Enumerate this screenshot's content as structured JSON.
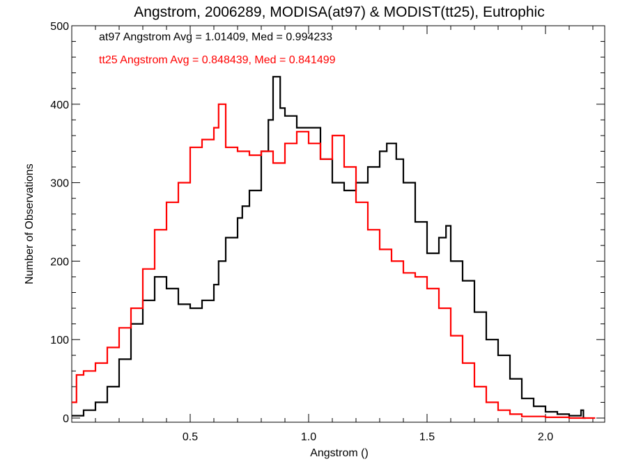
{
  "chart_data": {
    "type": "line",
    "title": "Angstrom, 2006289, MODISA(at97) & MODIST(tt25), Eutrophic",
    "xlabel": "Angstrom ()",
    "ylabel": "Number of Observations",
    "xlim": [
      0.0,
      2.25
    ],
    "ylim": [
      0,
      500
    ],
    "xticks": [
      0.5,
      1.0,
      1.5,
      2.0
    ],
    "xtick_labels": [
      "0.5",
      "1.0",
      "1.5",
      "2.0"
    ],
    "yticks": [
      0,
      100,
      200,
      300,
      400,
      500
    ],
    "ytick_labels": [
      "0",
      "100",
      "200",
      "300",
      "400",
      "500"
    ],
    "grid": false,
    "step": "histogram",
    "annotations": [
      {
        "text": "at97 Angstrom Avg = 1.01409, Med = 0.994233",
        "color": "#000000"
      },
      {
        "text": "tt25 Angstrom Avg = 0.848439, Med = 0.841499",
        "color": "#ff0000"
      }
    ],
    "series": [
      {
        "color": "#000000",
        "points": [
          [
            0.0,
            3
          ],
          [
            0.05,
            10
          ],
          [
            0.1,
            20
          ],
          [
            0.15,
            40
          ],
          [
            0.2,
            75
          ],
          [
            0.25,
            120
          ],
          [
            0.3,
            150
          ],
          [
            0.35,
            180
          ],
          [
            0.4,
            165
          ],
          [
            0.45,
            145
          ],
          [
            0.5,
            140
          ],
          [
            0.55,
            150
          ],
          [
            0.6,
            170
          ],
          [
            0.62,
            200
          ],
          [
            0.65,
            230
          ],
          [
            0.7,
            255
          ],
          [
            0.72,
            270
          ],
          [
            0.75,
            290
          ],
          [
            0.8,
            340
          ],
          [
            0.83,
            380
          ],
          [
            0.85,
            435
          ],
          [
            0.88,
            395
          ],
          [
            0.9,
            385
          ],
          [
            0.95,
            370
          ],
          [
            1.0,
            370
          ],
          [
            1.05,
            330
          ],
          [
            1.1,
            300
          ],
          [
            1.15,
            290
          ],
          [
            1.2,
            300
          ],
          [
            1.25,
            320
          ],
          [
            1.3,
            340
          ],
          [
            1.33,
            350
          ],
          [
            1.37,
            330
          ],
          [
            1.4,
            300
          ],
          [
            1.45,
            250
          ],
          [
            1.5,
            210
          ],
          [
            1.55,
            230
          ],
          [
            1.58,
            245
          ],
          [
            1.6,
            200
          ],
          [
            1.65,
            175
          ],
          [
            1.7,
            135
          ],
          [
            1.75,
            100
          ],
          [
            1.8,
            80
          ],
          [
            1.85,
            50
          ],
          [
            1.9,
            25
          ],
          [
            1.95,
            15
          ],
          [
            2.0,
            8
          ],
          [
            2.05,
            5
          ],
          [
            2.1,
            3
          ],
          [
            2.15,
            10
          ],
          [
            2.16,
            0
          ]
        ]
      },
      {
        "color": "#ff0000",
        "points": [
          [
            0.0,
            20
          ],
          [
            0.02,
            55
          ],
          [
            0.05,
            60
          ],
          [
            0.1,
            70
          ],
          [
            0.15,
            90
          ],
          [
            0.2,
            115
          ],
          [
            0.25,
            140
          ],
          [
            0.3,
            190
          ],
          [
            0.35,
            240
          ],
          [
            0.4,
            275
          ],
          [
            0.45,
            300
          ],
          [
            0.5,
            345
          ],
          [
            0.55,
            355
          ],
          [
            0.6,
            370
          ],
          [
            0.62,
            400
          ],
          [
            0.65,
            345
          ],
          [
            0.7,
            340
          ],
          [
            0.75,
            335
          ],
          [
            0.8,
            340
          ],
          [
            0.85,
            325
          ],
          [
            0.9,
            350
          ],
          [
            0.95,
            365
          ],
          [
            1.0,
            350
          ],
          [
            1.05,
            330
          ],
          [
            1.1,
            360
          ],
          [
            1.15,
            320
          ],
          [
            1.2,
            275
          ],
          [
            1.25,
            240
          ],
          [
            1.3,
            215
          ],
          [
            1.35,
            200
          ],
          [
            1.4,
            185
          ],
          [
            1.45,
            180
          ],
          [
            1.5,
            165
          ],
          [
            1.55,
            140
          ],
          [
            1.6,
            105
          ],
          [
            1.65,
            70
          ],
          [
            1.7,
            40
          ],
          [
            1.75,
            20
          ],
          [
            1.8,
            10
          ],
          [
            1.85,
            5
          ],
          [
            1.9,
            2
          ],
          [
            2.0,
            1
          ],
          [
            2.1,
            0
          ],
          [
            2.2,
            0
          ]
        ]
      }
    ]
  }
}
